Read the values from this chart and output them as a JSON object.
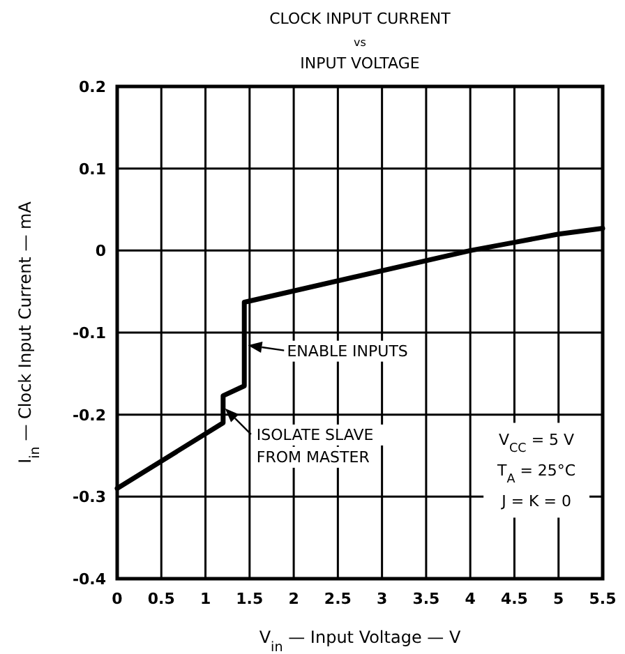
{
  "chart_data": {
    "type": "line",
    "title": "CLOCK INPUT CURRENT\nvs\nINPUT VOLTAGE",
    "xlabel": "V$_{in}$ — Input Voltage — V",
    "ylabel": "I$_{in}$ — Clock Input Current — mA",
    "x": [
      0,
      1.2,
      1.2,
      1.44,
      1.44,
      4,
      4.5,
      5,
      5.5
    ],
    "series": [
      {
        "color": "#000000",
        "values": [
          -0.29,
          -0.21,
          -0.177,
          -0.165,
          -0.063,
          0,
          0.01,
          0.02,
          0.027
        ]
      }
    ],
    "xlim": [
      0,
      5.5
    ],
    "xticks": [
      0,
      0.5,
      1,
      1.5,
      2,
      2.5,
      3,
      3.5,
      4,
      4.5,
      5,
      5.5
    ],
    "ylim": [
      -0.4,
      0.2
    ],
    "yticks": [
      -0.4,
      -0.3,
      -0.2,
      -0.1,
      0,
      0.1,
      0.2
    ],
    "grid": true,
    "marker": "none",
    "line_style": "solid",
    "annotations": [
      {
        "text": "ENABLE INPUTS",
        "x": 1.45,
        "y": -0.115
      },
      {
        "text": "ISOLATE SLAVE\nFROM MASTER",
        "x": 1.2,
        "y": -0.19
      },
      "V$_{CC}$ = 5 V",
      "T$_{A}$ = 25°C",
      "J = K = 0"
    ]
  }
}
